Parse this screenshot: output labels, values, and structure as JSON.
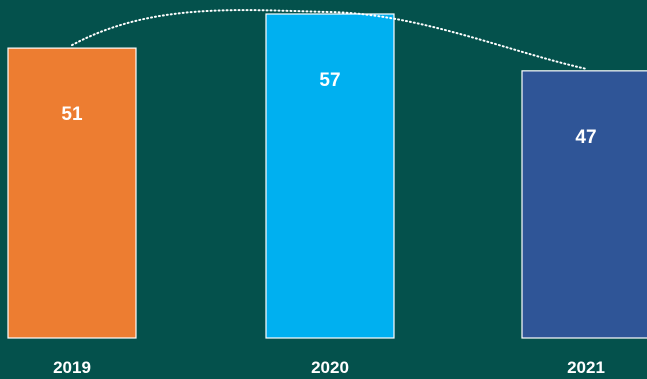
{
  "colors": {
    "background": "#04514C",
    "bar_2019": "#ED7D31",
    "bar_2020": "#00B0F0",
    "bar_2021": "#2F5597",
    "text": "#FFFFFF"
  },
  "chart_data": {
    "type": "bar",
    "title": "",
    "xlabel": "",
    "ylabel": "",
    "categories": [
      "2019",
      "2020",
      "2021"
    ],
    "values": [
      51,
      57,
      47
    ],
    "data_labels": [
      "51",
      "57",
      "47"
    ],
    "bar_colors": [
      "#ED7D31",
      "#00B0F0",
      "#2F5597"
    ],
    "ylim": [
      0,
      57
    ],
    "grid": false,
    "legend": "none",
    "trend_line": "dotted curve across bar tops"
  }
}
